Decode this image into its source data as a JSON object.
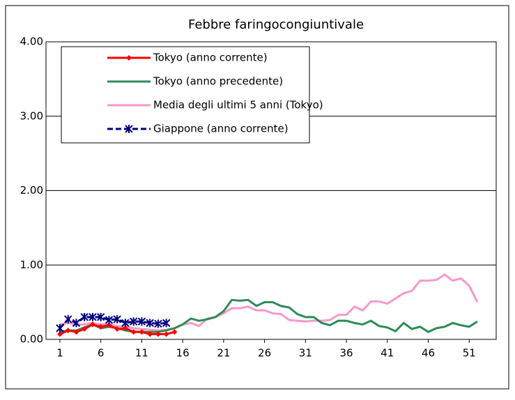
{
  "chart_data": {
    "type": "line",
    "title": "Febbre faringocongiuntivale",
    "x": [
      1,
      2,
      3,
      4,
      5,
      6,
      7,
      8,
      9,
      10,
      11,
      12,
      13,
      14,
      15,
      16,
      17,
      18,
      19,
      20,
      21,
      22,
      23,
      24,
      25,
      26,
      27,
      28,
      29,
      30,
      31,
      32,
      33,
      34,
      35,
      36,
      37,
      38,
      39,
      40,
      41,
      42,
      43,
      44,
      45,
      46,
      47,
      48,
      49,
      50,
      51,
      52
    ],
    "xlim": [
      -0.7,
      54.3
    ],
    "xticks": [
      1,
      6,
      11,
      16,
      21,
      26,
      31,
      36,
      41,
      46,
      51
    ],
    "ylim": [
      0,
      4
    ],
    "yticks": [
      {
        "value": 0,
        "label": "0.00"
      },
      {
        "value": 1,
        "label": "1.00"
      },
      {
        "value": 2,
        "label": "2.00"
      },
      {
        "value": 3,
        "label": "3.00"
      },
      {
        "value": 4,
        "label": "4.00"
      }
    ],
    "grid": true,
    "legend": "top-left",
    "series": [
      {
        "name": "Tokyo (anno corrente)",
        "color": "#ff0000",
        "marker": "diamond",
        "values": [
          0.07,
          0.12,
          0.1,
          0.14,
          0.2,
          0.17,
          0.19,
          0.14,
          0.15,
          0.1,
          0.1,
          0.07,
          0.07,
          0.07,
          0.1,
          null,
          null,
          null,
          null,
          null,
          null,
          null,
          null,
          null,
          null,
          null,
          null,
          null,
          null,
          null,
          null,
          null,
          null,
          null,
          null,
          null,
          null,
          null,
          null,
          null,
          null,
          null,
          null,
          null,
          null,
          null,
          null,
          null,
          null,
          null,
          null,
          null
        ]
      },
      {
        "name": "Tokyo (anno precedente)",
        "color": "#2e8b57",
        "values": [
          0.1,
          0.12,
          0.12,
          0.16,
          0.2,
          0.15,
          0.17,
          0.15,
          0.12,
          0.1,
          0.1,
          0.1,
          0.1,
          0.12,
          0.15,
          0.2,
          0.28,
          0.25,
          0.27,
          0.3,
          0.38,
          0.53,
          0.52,
          0.53,
          0.45,
          0.5,
          0.5,
          0.45,
          0.43,
          0.34,
          0.3,
          0.3,
          0.22,
          0.19,
          0.25,
          0.25,
          0.22,
          0.2,
          0.25,
          0.18,
          0.16,
          0.11,
          0.22,
          0.14,
          0.17,
          0.1,
          0.15,
          0.17,
          0.22,
          0.19,
          0.17,
          0.24
        ]
      },
      {
        "name": "Media degli ultimi 5 anni (Tokyo)",
        "color": "#f799c8",
        "values": [
          0.2,
          0.22,
          0.2,
          0.2,
          0.22,
          0.2,
          0.2,
          0.18,
          0.17,
          0.15,
          0.14,
          0.13,
          0.12,
          0.13,
          0.15,
          0.2,
          0.22,
          0.18,
          0.28,
          0.3,
          0.35,
          0.42,
          0.42,
          0.44,
          0.39,
          0.39,
          0.35,
          0.34,
          0.26,
          0.25,
          0.24,
          0.25,
          0.25,
          0.26,
          0.33,
          0.33,
          0.44,
          0.39,
          0.51,
          0.51,
          0.48,
          0.55,
          0.62,
          0.65,
          0.79,
          0.79,
          0.8,
          0.87,
          0.79,
          0.82,
          0.72,
          0.5
        ]
      },
      {
        "name": "Giappone (anno corrente)",
        "color": "#000080",
        "marker": "star",
        "dash": true,
        "values": [
          0.15,
          0.27,
          0.22,
          0.3,
          0.3,
          0.3,
          0.26,
          0.27,
          0.22,
          0.24,
          0.24,
          0.22,
          0.21,
          0.22,
          null,
          null,
          null,
          null,
          null,
          null,
          null,
          null,
          null,
          null,
          null,
          null,
          null,
          null,
          null,
          null,
          null,
          null,
          null,
          null,
          null,
          null,
          null,
          null,
          null,
          null,
          null,
          null,
          null,
          null,
          null,
          null,
          null,
          null,
          null,
          null,
          null,
          null
        ]
      }
    ]
  }
}
